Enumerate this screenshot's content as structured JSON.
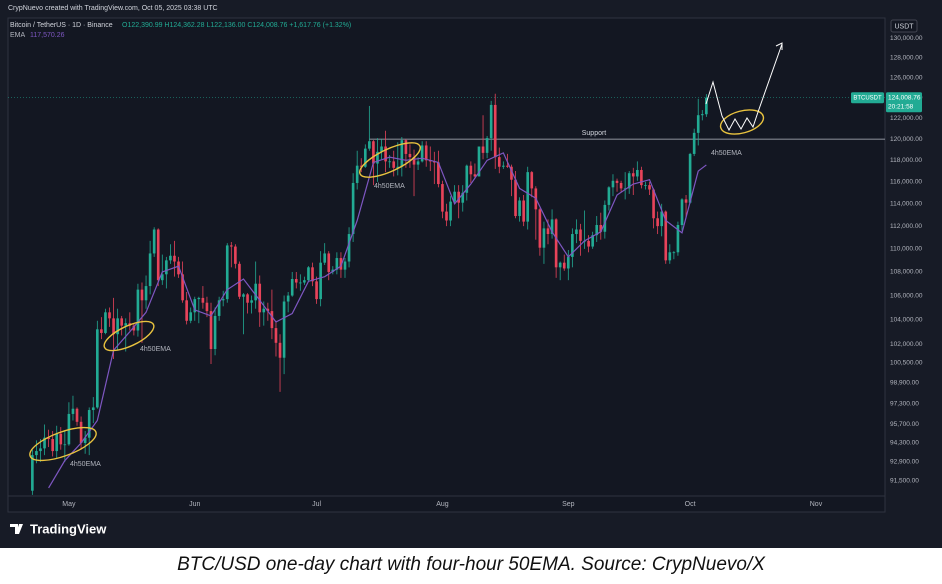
{
  "chart_data": {
    "type": "candlestick",
    "header": "CrypNuevo created with TradingView.com, Oct 05, 2025 03:38 UTC",
    "symbol": "Bitcoin / TetherUS · 1D · Binance",
    "ohlc_text": "O122,390.99 H124,362.28 L122,136.00 C124,008.76 +1,617.76 (+1.32%)",
    "ema_label": "EMA",
    "ema_value_label": "117,570.26",
    "currency": "USDT",
    "up_color": "#22ab94",
    "down_color": "#e8435a",
    "x": [
      0,
      1,
      2,
      3,
      4,
      5,
      6,
      7,
      8,
      9,
      10,
      11,
      12,
      13,
      14,
      15,
      16,
      17,
      18,
      19,
      20,
      21,
      22,
      23,
      24,
      25,
      26,
      27,
      28,
      29,
      30,
      31,
      32,
      33,
      34,
      35,
      36,
      37,
      38,
      39,
      40,
      41,
      42,
      43,
      44,
      45,
      46,
      47,
      48,
      49,
      50,
      51,
      52,
      53,
      54,
      55,
      56,
      57,
      58,
      59,
      60,
      61,
      62,
      63,
      64,
      65,
      66,
      67,
      68,
      69,
      70,
      71,
      72,
      73,
      74,
      75,
      76,
      77,
      78,
      79,
      80,
      81,
      82,
      83,
      84,
      85,
      86,
      87,
      88,
      89,
      90,
      91,
      92,
      93,
      94,
      95,
      96,
      97,
      98,
      99,
      100,
      101,
      102,
      103,
      104,
      105,
      106,
      107,
      108,
      109,
      110,
      111,
      112,
      113,
      114,
      115,
      116,
      117,
      118,
      119,
      120,
      121,
      122,
      123,
      124,
      125,
      126,
      127,
      128,
      129,
      130,
      131,
      132,
      133,
      134,
      135,
      136,
      137,
      138,
      139,
      140,
      141,
      142,
      143,
      144,
      145,
      146,
      147,
      148,
      149,
      150,
      151,
      152,
      153,
      154,
      155,
      156,
      157,
      158,
      159,
      160,
      161,
      162,
      163,
      164,
      165,
      166
    ],
    "open": [
      90800,
      93400,
      93700,
      93900,
      94700,
      94600,
      93700,
      95000,
      94200,
      94200,
      96500,
      96900,
      95900,
      94300,
      94700,
      96800,
      97000,
      103200,
      102900,
      104600,
      104100,
      102800,
      104100,
      103500,
      103700,
      103500,
      103100,
      106500,
      105600,
      106800,
      109600,
      111700,
      107300,
      107800,
      109000,
      109400,
      108900,
      107800,
      105600,
      103900,
      104600,
      105700,
      105800,
      105400,
      104700,
      101600,
      104300,
      105600,
      105700,
      110300,
      110200,
      108700,
      105900,
      106100,
      105400,
      105600,
      107000,
      104600,
      104900,
      104700,
      103300,
      102100,
      100900,
      105500,
      106000,
      107400,
      107100,
      107100,
      107300,
      108400,
      107200,
      105700,
      108800,
      109600,
      108000,
      108200,
      109200,
      108200,
      108900,
      111300,
      115900,
      117500,
      117400,
      119100,
      119800,
      117700,
      118800,
      119300,
      117900,
      117900,
      117300,
      117400,
      119900,
      118600,
      118300,
      117600,
      117900,
      119400,
      118000,
      117900,
      117800,
      115800,
      113300,
      112500,
      114200,
      115100,
      114100,
      115000,
      117500,
      116700,
      116500,
      119300,
      118700,
      120100,
      123300,
      118300,
      117400,
      117500,
      117400,
      116200,
      112900,
      114300,
      112400,
      116900,
      115400,
      113500,
      110100,
      111800,
      111300,
      112600,
      108400,
      108800,
      108300,
      109300,
      111300,
      111700,
      110700,
      110700,
      110200,
      111200,
      112100,
      111500,
      113900,
      115500,
      116100,
      115900,
      115400,
      115400,
      116800,
      116500,
      117100,
      115700,
      115700,
      115300,
      112700,
      112000,
      113300,
      109000,
      109700,
      109700,
      112100,
      114400,
      114100,
      118600,
      120600,
      122300,
      122390.99
    ],
    "high": [
      93800,
      94500,
      94600,
      95700,
      95300,
      95200,
      95600,
      95500,
      95200,
      97400,
      97900,
      97000,
      96300,
      95200,
      97000,
      97800,
      103900,
      104200,
      104900,
      105000,
      105800,
      104900,
      104300,
      104100,
      104600,
      103700,
      107000,
      107100,
      107700,
      110700,
      111900,
      111800,
      109500,
      109300,
      110400,
      110700,
      109300,
      108900,
      106300,
      105000,
      105900,
      105900,
      106800,
      105900,
      105400,
      105000,
      105900,
      106400,
      110500,
      110600,
      110400,
      108900,
      106200,
      106200,
      106000,
      108900,
      107700,
      105500,
      105400,
      106500,
      103900,
      102800,
      106000,
      106300,
      108000,
      108000,
      107800,
      107600,
      108500,
      108800,
      107600,
      109800,
      110500,
      109800,
      108500,
      109700,
      109700,
      109200,
      111900,
      116800,
      118900,
      118200,
      119500,
      123200,
      119900,
      120100,
      120000,
      120800,
      118500,
      118900,
      119700,
      120200,
      120000,
      119500,
      119000,
      118300,
      119800,
      119800,
      119300,
      118800,
      118900,
      116100,
      114000,
      114700,
      115700,
      115700,
      115700,
      117600,
      117900,
      117700,
      119300,
      122300,
      120300,
      123700,
      124400,
      119200,
      117900,
      118600,
      117600,
      117000,
      114600,
      114800,
      117400,
      117000,
      115600,
      113600,
      112400,
      112600,
      113500,
      112700,
      108900,
      109500,
      109900,
      111800,
      112600,
      112200,
      113400,
      111200,
      111500,
      112900,
      113200,
      114300,
      115600,
      116700,
      116300,
      116100,
      116900,
      117000,
      117300,
      117900,
      117400,
      116000,
      116000,
      115400,
      113300,
      114000,
      113400,
      110400,
      109800,
      112400,
      114500,
      114800,
      118700,
      121000,
      123900,
      122800,
      124362.28
    ],
    "low": [
      90500,
      92800,
      92900,
      93400,
      94000,
      93300,
      93200,
      93800,
      92900,
      94100,
      96000,
      95600,
      93800,
      93500,
      93400,
      95800,
      96900,
      102400,
      102800,
      103400,
      100800,
      101500,
      102700,
      101400,
      103100,
      102700,
      102600,
      102100,
      104900,
      106100,
      109300,
      106800,
      106900,
      106600,
      108700,
      107600,
      107500,
      105400,
      103600,
      103700,
      103900,
      103700,
      104900,
      104200,
      100400,
      101100,
      103900,
      105100,
      105400,
      108400,
      108300,
      105700,
      102800,
      104500,
      104500,
      104900,
      103400,
      103500,
      103900,
      102400,
      101000,
      98200,
      99600,
      104600,
      105900,
      106600,
      106400,
      106900,
      107200,
      106800,
      105300,
      105100,
      108600,
      107300,
      107800,
      107800,
      107500,
      107500,
      108400,
      110600,
      115300,
      116900,
      117300,
      118900,
      115700,
      116000,
      118100,
      116900,
      117300,
      116500,
      116600,
      116500,
      117300,
      117300,
      114700,
      117100,
      117800,
      117400,
      117000,
      115800,
      115500,
      112700,
      112000,
      112000,
      114100,
      112700,
      113300,
      114300,
      115900,
      116300,
      116500,
      118100,
      118200,
      118900,
      117200,
      116800,
      117200,
      117300,
      114700,
      112700,
      112400,
      112000,
      111700,
      114600,
      110800,
      109400,
      108700,
      110400,
      110900,
      107500,
      107300,
      108100,
      107300,
      108400,
      110500,
      109400,
      110000,
      109700,
      110000,
      110600,
      110800,
      110900,
      113400,
      114700,
      115100,
      115100,
      114400,
      114900,
      114800,
      116100,
      115400,
      115300,
      114800,
      111800,
      111300,
      111100,
      108700,
      108700,
      109100,
      109400,
      111600,
      112700,
      114000,
      118400,
      119400,
      121800,
      122136
    ],
    "close": [
      93400,
      93700,
      93900,
      94700,
      94600,
      93700,
      95000,
      94200,
      94200,
      96500,
      96900,
      95900,
      94300,
      94700,
      96800,
      97000,
      103200,
      102900,
      104600,
      104100,
      102800,
      104100,
      103500,
      103700,
      103500,
      103100,
      106500,
      105600,
      106800,
      109600,
      111700,
      107300,
      107800,
      109000,
      109400,
      108900,
      107800,
      105600,
      103900,
      104600,
      105700,
      105800,
      105400,
      104700,
      101600,
      104300,
      105600,
      105700,
      110300,
      110200,
      108700,
      105900,
      106100,
      105400,
      105600,
      107000,
      104600,
      104900,
      104700,
      103300,
      102100,
      100900,
      105500,
      106000,
      107400,
      107100,
      107100,
      107300,
      108400,
      107200,
      105700,
      108800,
      109600,
      108000,
      108200,
      109200,
      108200,
      108900,
      111300,
      115900,
      117500,
      117400,
      119100,
      119800,
      117700,
      118800,
      119300,
      117900,
      117900,
      117300,
      117400,
      119900,
      118600,
      118300,
      117600,
      117900,
      119400,
      118000,
      117900,
      117800,
      115800,
      113300,
      112500,
      114200,
      115100,
      114100,
      115000,
      117500,
      116700,
      116500,
      119300,
      118700,
      120100,
      123300,
      118300,
      117400,
      117500,
      117400,
      116200,
      112900,
      114300,
      112400,
      116900,
      115400,
      113500,
      110100,
      111800,
      111300,
      112600,
      108400,
      108800,
      108300,
      109300,
      111300,
      111700,
      110700,
      110700,
      110200,
      111200,
      112100,
      111500,
      113900,
      115500,
      116100,
      115900,
      115400,
      115400,
      116800,
      116500,
      117100,
      115700,
      115700,
      115300,
      112700,
      112000,
      113300,
      109000,
      109700,
      109700,
      112100,
      114400,
      114100,
      118600,
      120600,
      122300,
      122400,
      124008.76
    ],
    "ema": {
      "color": "#7e57c2",
      "x": [
        4,
        8,
        12,
        16,
        20,
        24,
        28,
        32,
        36,
        40,
        44,
        48,
        52,
        56,
        60,
        64,
        68,
        72,
        76,
        80,
        84,
        88,
        92,
        96,
        100,
        104,
        108,
        112,
        116,
        120,
        124,
        128,
        132,
        136,
        140,
        144,
        148,
        152,
        156,
        160,
        164,
        166
      ],
      "values": [
        91000,
        93000,
        94300,
        96000,
        101500,
        103000,
        104600,
        108000,
        108500,
        104800,
        104300,
        106500,
        107400,
        105600,
        103800,
        104500,
        107200,
        107600,
        108500,
        112500,
        117800,
        118300,
        118000,
        118200,
        117800,
        114000,
        115800,
        118000,
        118700,
        115400,
        114500,
        111500,
        109300,
        110700,
        111500,
        114800,
        115800,
        116200,
        112500,
        111400,
        117000,
        117570.26
      ]
    },
    "support": {
      "label": "Support",
      "value": 120000
    },
    "annotations": [
      "4h50EMA",
      "4h50EMA",
      "4h50EMA",
      "4h50EMA"
    ],
    "price_tag": {
      "symbol": "BTCUSDT",
      "price": "124,008.76",
      "countdown": "20:21:58"
    },
    "log_scale": true,
    "grid": false,
    "xlim": [
      -6,
      210
    ],
    "xticks": [
      {
        "value": 9,
        "label": "May"
      },
      {
        "value": 40,
        "label": "Jun"
      },
      {
        "value": 70,
        "label": "Jul"
      },
      {
        "value": 101,
        "label": "Aug"
      },
      {
        "value": 132,
        "label": "Sep"
      },
      {
        "value": 162,
        "label": "Oct"
      },
      {
        "value": 193,
        "label": "Nov"
      }
    ],
    "ylim": [
      90420,
      132100
    ],
    "yticks": [
      {
        "value": 130000,
        "label": "130,000.00"
      },
      {
        "value": 128000,
        "label": "128,000.00"
      },
      {
        "value": 126000,
        "label": "126,000.00"
      },
      {
        "value": 124000,
        "label": "124,000.00"
      },
      {
        "value": 122000,
        "label": "122,000.00"
      },
      {
        "value": 120000,
        "label": "120,000.00"
      },
      {
        "value": 118000,
        "label": "118,000.00"
      },
      {
        "value": 116000,
        "label": "116,000.00"
      },
      {
        "value": 114000,
        "label": "114,000.00"
      },
      {
        "value": 112000,
        "label": "112,000.00"
      },
      {
        "value": 110000,
        "label": "110,000.00"
      },
      {
        "value": 108000,
        "label": "108,000.00"
      },
      {
        "value": 106000,
        "label": "106,000.00"
      },
      {
        "value": 104000,
        "label": "104,000.00"
      },
      {
        "value": 102000,
        "label": "102,000.00"
      },
      {
        "value": 100500,
        "label": "100,500.00"
      },
      {
        "value": 98900,
        "label": "98,900.00"
      },
      {
        "value": 97300,
        "label": "97,300.00"
      },
      {
        "value": 95700,
        "label": "95,700.00"
      },
      {
        "value": 94300,
        "label": "94,300.00"
      },
      {
        "value": 92900,
        "label": "92,900.00"
      },
      {
        "value": 91500,
        "label": "91,500.00"
      }
    ]
  },
  "logo": "TradingView",
  "caption": "BTC/USD one-day chart with four-hour 50EMA. Source: CrypNuevo/X"
}
